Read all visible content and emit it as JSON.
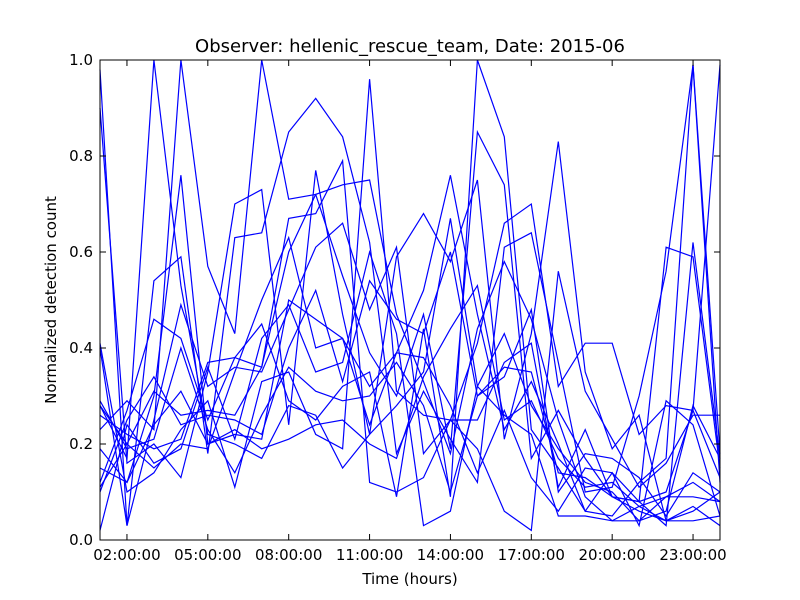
{
  "chart_data": {
    "type": "line",
    "title": "Observer: hellenic_rescue_team, Date: 2015-06",
    "xlabel": "Time (hours)",
    "ylabel": "Normalized detection count",
    "xlim": [
      1,
      24
    ],
    "ylim": [
      0,
      1
    ],
    "x_ticks": [
      {
        "value": 2,
        "label": "02:00:00"
      },
      {
        "value": 5,
        "label": "05:00:00"
      },
      {
        "value": 8,
        "label": "08:00:00"
      },
      {
        "value": 11,
        "label": "11:00:00"
      },
      {
        "value": 14,
        "label": "14:00:00"
      },
      {
        "value": 17,
        "label": "17:00:00"
      },
      {
        "value": 20,
        "label": "20:00:00"
      },
      {
        "value": 23,
        "label": "23:00:00"
      }
    ],
    "y_ticks": [
      {
        "value": 0,
        "label": "0.0"
      },
      {
        "value": 0.2,
        "label": "0.2"
      },
      {
        "value": 0.4,
        "label": "0.4"
      },
      {
        "value": 0.6,
        "label": "0.6"
      },
      {
        "value": 0.8,
        "label": "0.8"
      },
      {
        "value": 1,
        "label": "1.0"
      }
    ],
    "grid": false,
    "legend": "none",
    "line_color": "#0000ff",
    "x": [
      1,
      2,
      3,
      4,
      5,
      6,
      7,
      8,
      9,
      10,
      11,
      12,
      13,
      14,
      15,
      16,
      17,
      18,
      19,
      20,
      21,
      22,
      23,
      24
    ],
    "series": [
      {
        "values": [
          0.98,
          0.03,
          0.54,
          0.59,
          0.18,
          0.63,
          0.64,
          0.85,
          0.92,
          0.84,
          0.62,
          0.18,
          0.31,
          0.21,
          0.12,
          0.61,
          0.64,
          0.37,
          0.1,
          0.11,
          0.3,
          0.56,
          0.99,
          0.12
        ]
      },
      {
        "values": [
          0.12,
          0.27,
          0.46,
          0.42,
          0.25,
          0.38,
          0.36,
          0.6,
          0.72,
          0.74,
          0.75,
          0.47,
          0.33,
          0.18,
          0.44,
          0.58,
          0.46,
          0.25,
          0.09,
          0.04,
          0.04,
          0.06,
          0.28,
          0.17
        ]
      },
      {
        "values": [
          0.28,
          0.2,
          0.31,
          0.26,
          0.27,
          0.26,
          0.36,
          0.67,
          0.68,
          0.79,
          0.12,
          0.1,
          0.13,
          0.25,
          0.41,
          0.66,
          0.7,
          0.32,
          0.41,
          0.41,
          0.22,
          0.28,
          0.27,
          0.13
        ]
      },
      {
        "values": [
          0.11,
          0.2,
          0.15,
          0.2,
          0.19,
          0.35,
          0.5,
          0.63,
          0.4,
          0.42,
          0.32,
          0.39,
          0.38,
          0.28,
          0.14,
          0.27,
          0.13,
          0.06,
          0.15,
          0.14,
          0.08,
          0.61,
          0.59,
          0.15
        ]
      },
      {
        "values": [
          0.26,
          0.22,
          0.19,
          0.21,
          0.37,
          0.38,
          0.45,
          0.29,
          0.25,
          0.32,
          0.35,
          0.09,
          0.44,
          0.09,
          1.0,
          0.84,
          0.23,
          0.15,
          0.06,
          0.14,
          0.03,
          0.29,
          0.24,
          0.05
        ]
      },
      {
        "values": [
          0.19,
          0.12,
          0.24,
          0.31,
          0.2,
          0.22,
          0.21,
          0.5,
          0.46,
          0.42,
          0.24,
          0.39,
          0.52,
          0.76,
          0.47,
          0.23,
          0.33,
          0.2,
          0.06,
          0.05,
          0.12,
          0.17,
          0.99,
          0.18
        ]
      },
      {
        "values": [
          0.29,
          0.19,
          0.21,
          0.4,
          0.23,
          0.14,
          0.26,
          0.36,
          0.31,
          0.29,
          0.3,
          0.37,
          0.28,
          0.1,
          0.3,
          0.34,
          0.48,
          0.1,
          0.18,
          0.17,
          0.13,
          0.05,
          0.14,
          0.1
        ]
      },
      {
        "values": [
          0.1,
          0.25,
          0.34,
          0.24,
          0.26,
          0.25,
          0.22,
          0.4,
          0.52,
          0.33,
          0.54,
          0.46,
          0.43,
          0.6,
          0.3,
          0.36,
          0.35,
          0.14,
          0.13,
          0.09,
          0.06,
          0.04,
          0.07,
          0.03
        ]
      },
      {
        "values": [
          0.02,
          0.24,
          0.16,
          0.19,
          0.36,
          0.21,
          0.42,
          0.49,
          0.35,
          0.37,
          0.6,
          0.43,
          0.03,
          0.06,
          0.32,
          0.26,
          0.22,
          0.05,
          0.05,
          0.04,
          0.07,
          0.09,
          0.09,
          0.08
        ]
      },
      {
        "values": [
          0.15,
          0.12,
          0.3,
          0.76,
          0.2,
          0.23,
          0.19,
          0.21,
          0.24,
          0.25,
          0.2,
          0.17,
          0.34,
          0.44,
          0.53,
          0.25,
          0.29,
          0.17,
          0.11,
          0.12,
          0.07,
          0.04,
          0.06,
          0.1
        ]
      },
      {
        "values": [
          0.28,
          0.17,
          1.0,
          0.53,
          0.22,
          0.2,
          0.17,
          0.28,
          0.26,
          0.15,
          0.22,
          0.28,
          0.35,
          0.67,
          0.32,
          0.43,
          0.28,
          0.19,
          0.12,
          0.1,
          0.04,
          0.09,
          0.12,
          0.08
        ]
      },
      {
        "values": [
          0.23,
          0.29,
          0.23,
          1.0,
          0.57,
          0.43,
          1.0,
          0.71,
          0.72,
          0.55,
          0.39,
          0.3,
          0.47,
          0.19,
          0.85,
          0.74,
          0.17,
          0.27,
          0.17,
          0.09,
          0.08,
          0.03,
          0.62,
          0.17
        ]
      },
      {
        "values": [
          0.9,
          0.16,
          0.2,
          0.13,
          0.35,
          0.7,
          0.73,
          0.24,
          0.77,
          0.47,
          0.22,
          0.59,
          0.68,
          0.58,
          0.75,
          0.21,
          0.43,
          0.83,
          0.35,
          0.19,
          0.26,
          0.04,
          0.04,
          0.05
        ]
      },
      {
        "values": [
          0.41,
          0.1,
          0.14,
          0.23,
          0.29,
          0.11,
          0.33,
          0.35,
          0.22,
          0.19,
          0.96,
          0.31,
          0.26,
          0.25,
          0.19,
          0.06,
          0.02,
          0.56,
          0.31,
          0.21,
          0.11,
          0.16,
          0.26,
          0.26
        ]
      },
      {
        "values": [
          0.4,
          0.03,
          0.25,
          0.49,
          0.32,
          0.36,
          0.35,
          0.48,
          0.61,
          0.66,
          0.48,
          0.61,
          0.18,
          0.25,
          0.25,
          0.37,
          0.41,
          0.11,
          0.23,
          0.09,
          0.08,
          0.1,
          0.27,
          0.99
        ]
      }
    ]
  }
}
